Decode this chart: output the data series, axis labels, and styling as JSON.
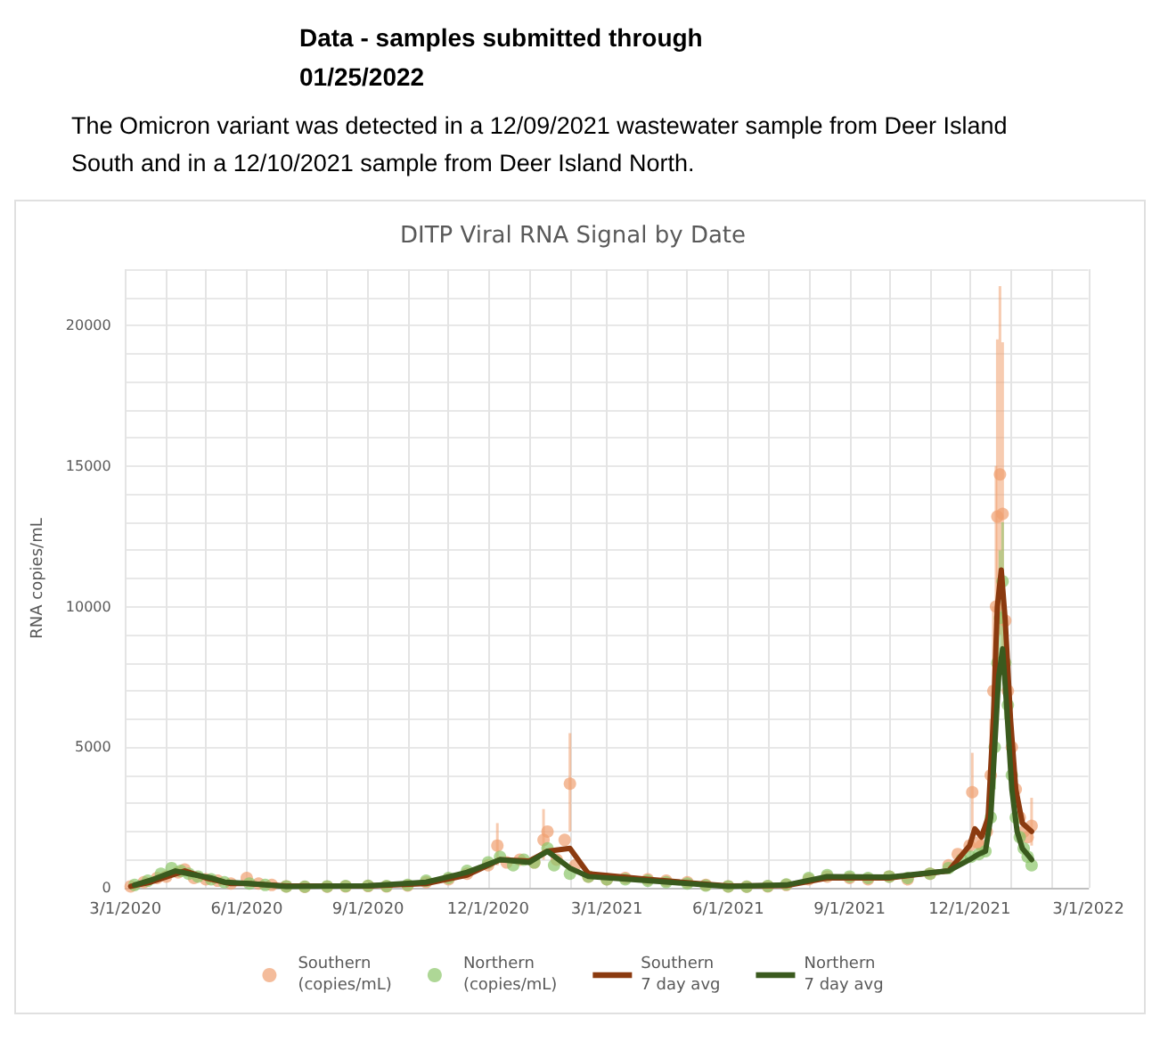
{
  "chart_data": {
    "type": "scatter",
    "title": "DITP Viral RNA Signal by Date",
    "ylabel": "RNA copies/mL",
    "annotations": [
      "Data - samples submitted through 01/25/2022",
      "The Omicron variant was detected in a 12/09/2021 wastewater sample from Deer Island South and in a 12/10/2021 sample from Deer Island North."
    ],
    "xlim": [
      "2020-03-01",
      "2022-03-01"
    ],
    "xticks": [
      {
        "value": "2020-03-01",
        "label": "3/1/2020"
      },
      {
        "value": "2020-04-01",
        "label": null
      },
      {
        "value": "2020-05-01",
        "label": null
      },
      {
        "value": "2020-06-01",
        "label": "6/1/2020"
      },
      {
        "value": "2020-07-01",
        "label": null
      },
      {
        "value": "2020-08-01",
        "label": null
      },
      {
        "value": "2020-09-01",
        "label": "9/1/2020"
      },
      {
        "value": "2020-10-01",
        "label": null
      },
      {
        "value": "2020-11-01",
        "label": null
      },
      {
        "value": "2020-12-01",
        "label": "12/1/2020"
      },
      {
        "value": "2021-01-01",
        "label": null
      },
      {
        "value": "2021-02-01",
        "label": null
      },
      {
        "value": "2021-03-01",
        "label": "3/1/2021"
      },
      {
        "value": "2021-04-01",
        "label": null
      },
      {
        "value": "2021-05-01",
        "label": null
      },
      {
        "value": "2021-06-01",
        "label": "6/1/2021"
      },
      {
        "value": "2021-07-01",
        "label": null
      },
      {
        "value": "2021-08-01",
        "label": null
      },
      {
        "value": "2021-09-01",
        "label": "9/1/2021"
      },
      {
        "value": "2021-10-01",
        "label": null
      },
      {
        "value": "2021-11-01",
        "label": null
      },
      {
        "value": "2021-12-01",
        "label": "12/1/2021"
      },
      {
        "value": "2022-01-01",
        "label": null
      },
      {
        "value": "2022-02-01",
        "label": null
      },
      {
        "value": "2022-03-01",
        "label": "3/1/2022"
      }
    ],
    "ylim": [
      0,
      22000
    ],
    "yticks": [
      0,
      {
        "value": 1000,
        "label": null
      },
      {
        "value": 2000,
        "label": null
      },
      {
        "value": 3000,
        "label": null
      },
      {
        "value": 4000,
        "label": null
      },
      5000,
      {
        "value": 6000,
        "label": null
      },
      {
        "value": 7000,
        "label": null
      },
      {
        "value": 8000,
        "label": null
      },
      {
        "value": 9000,
        "label": null
      },
      10000,
      {
        "value": 11000,
        "label": null
      },
      {
        "value": 12000,
        "label": null
      },
      {
        "value": 13000,
        "label": null
      },
      {
        "value": 14000,
        "label": null
      },
      15000,
      {
        "value": 16000,
        "label": null
      },
      {
        "value": 17000,
        "label": null
      },
      {
        "value": 18000,
        "label": null
      },
      {
        "value": 19000,
        "label": null
      },
      20000,
      {
        "value": 21000,
        "label": null
      },
      {
        "value": 22000,
        "label": null
      }
    ],
    "grid": true,
    "legend": "bottom",
    "marker": "circle",
    "series": [
      {
        "name": "Southern (copies/mL)",
        "color": "#f0a070",
        "x": [
          "2020-03-05",
          "2020-03-15",
          "2020-03-25",
          "2020-04-01",
          "2020-04-10",
          "2020-04-15",
          "2020-04-22",
          "2020-05-01",
          "2020-05-10",
          "2020-05-20",
          "2020-06-01",
          "2020-06-10",
          "2020-06-20",
          "2020-07-01",
          "2020-07-15",
          "2020-08-01",
          "2020-08-15",
          "2020-09-01",
          "2020-09-15",
          "2020-10-01",
          "2020-10-15",
          "2020-11-01",
          "2020-11-15",
          "2020-12-01",
          "2020-12-08",
          "2020-12-15",
          "2020-12-25",
          "2021-01-05",
          "2021-01-12",
          "2021-01-15",
          "2021-01-22",
          "2021-01-28",
          "2021-02-01",
          "2021-02-05",
          "2021-02-15",
          "2021-03-01",
          "2021-03-15",
          "2021-04-01",
          "2021-04-15",
          "2021-05-01",
          "2021-05-15",
          "2021-06-01",
          "2021-06-15",
          "2021-07-01",
          "2021-07-15",
          "2021-08-01",
          "2021-08-15",
          "2021-09-01",
          "2021-09-15",
          "2021-10-01",
          "2021-10-15",
          "2021-11-01",
          "2021-11-15",
          "2021-11-22",
          "2021-12-01",
          "2021-12-03",
          "2021-12-07",
          "2021-12-10",
          "2021-12-14",
          "2021-12-17",
          "2021-12-19",
          "2021-12-21",
          "2021-12-22",
          "2021-12-24",
          "2021-12-26",
          "2021-12-28",
          "2021-12-30",
          "2022-01-02",
          "2022-01-05",
          "2022-01-08",
          "2022-01-11",
          "2022-01-14",
          "2022-01-17"
        ],
        "values": [
          50,
          200,
          350,
          400,
          550,
          650,
          350,
          300,
          250,
          150,
          350,
          150,
          100,
          50,
          30,
          40,
          50,
          60,
          50,
          80,
          200,
          300,
          500,
          800,
          1500,
          900,
          1000,
          900,
          1700,
          2000,
          1000,
          1700,
          3700,
          800,
          400,
          300,
          350,
          300,
          250,
          200,
          100,
          50,
          40,
          50,
          100,
          300,
          400,
          350,
          300,
          400,
          300,
          500,
          800,
          1200,
          1500,
          3400,
          1600,
          1500,
          2000,
          4000,
          7000,
          10000,
          13200,
          14700,
          13300,
          9500,
          7000,
          5000,
          3500,
          2500,
          2000,
          1800,
          2200
        ],
        "errors": [
          null,
          null,
          null,
          null,
          null,
          null,
          null,
          null,
          null,
          null,
          null,
          null,
          null,
          null,
          null,
          null,
          null,
          null,
          null,
          null,
          null,
          null,
          null,
          null,
          [
            800,
            2300
          ],
          null,
          null,
          null,
          [
            1000,
            2800
          ],
          null,
          null,
          null,
          [
            2000,
            5500
          ],
          null,
          null,
          null,
          null,
          null,
          null,
          null,
          null,
          null,
          null,
          null,
          null,
          null,
          null,
          null,
          null,
          null,
          null,
          null,
          null,
          null,
          null,
          [
            2000,
            4800
          ],
          null,
          null,
          null,
          [
            2500,
            6000
          ],
          [
            4500,
            10000
          ],
          [
            6000,
            15000
          ],
          [
            8000,
            19500
          ],
          [
            9000,
            21400
          ],
          [
            8500,
            19400
          ],
          null,
          null,
          null,
          null,
          null,
          null,
          null,
          [
            1500,
            3200
          ]
        ]
      },
      {
        "name": "Northern (copies/mL)",
        "color": "#8cc66a",
        "x": [
          "2020-03-08",
          "2020-03-18",
          "2020-03-28",
          "2020-04-05",
          "2020-04-12",
          "2020-04-18",
          "2020-04-25",
          "2020-05-05",
          "2020-05-15",
          "2020-06-03",
          "2020-06-15",
          "2020-07-01",
          "2020-07-15",
          "2020-08-01",
          "2020-08-15",
          "2020-09-01",
          "2020-09-15",
          "2020-10-01",
          "2020-10-15",
          "2020-11-01",
          "2020-11-15",
          "2020-12-01",
          "2020-12-10",
          "2020-12-20",
          "2020-12-28",
          "2021-01-05",
          "2021-01-15",
          "2021-01-20",
          "2021-02-01",
          "2021-02-15",
          "2021-03-01",
          "2021-03-15",
          "2021-04-01",
          "2021-04-15",
          "2021-05-01",
          "2021-05-15",
          "2021-06-01",
          "2021-06-15",
          "2021-07-01",
          "2021-07-15",
          "2021-08-01",
          "2021-08-15",
          "2021-09-01",
          "2021-09-15",
          "2021-10-01",
          "2021-10-15",
          "2021-11-01",
          "2021-11-15",
          "2021-11-25",
          "2021-12-02",
          "2021-12-08",
          "2021-12-13",
          "2021-12-17",
          "2021-12-20",
          "2021-12-22",
          "2021-12-24",
          "2021-12-26",
          "2021-12-28",
          "2021-12-30",
          "2022-01-02",
          "2022-01-05",
          "2022-01-08",
          "2022-01-11",
          "2022-01-14",
          "2022-01-17"
        ],
        "values": [
          100,
          250,
          500,
          700,
          600,
          500,
          400,
          300,
          200,
          150,
          100,
          50,
          40,
          50,
          60,
          70,
          60,
          100,
          250,
          350,
          600,
          900,
          1100,
          800,
          1000,
          900,
          1400,
          800,
          500,
          400,
          300,
          300,
          250,
          200,
          150,
          80,
          50,
          40,
          60,
          120,
          350,
          450,
          400,
          350,
          400,
          350,
          500,
          700,
          1000,
          1100,
          1200,
          1300,
          2500,
          5000,
          8000,
          9600,
          10900,
          8000,
          6500,
          4000,
          2500,
          1800,
          1400,
          1100,
          800
        ],
        "errors": [
          null,
          null,
          null,
          null,
          null,
          null,
          null,
          null,
          null,
          null,
          null,
          null,
          null,
          null,
          null,
          null,
          null,
          null,
          null,
          null,
          null,
          null,
          null,
          null,
          null,
          null,
          null,
          null,
          null,
          null,
          null,
          null,
          null,
          null,
          null,
          null,
          null,
          null,
          null,
          null,
          null,
          null,
          null,
          null,
          null,
          null,
          null,
          null,
          null,
          null,
          null,
          null,
          null,
          [
            3500,
            7000
          ],
          [
            6000,
            10500
          ],
          [
            7000,
            12000
          ],
          [
            8000,
            13000
          ],
          [
            6000,
            10000
          ],
          null,
          null,
          null,
          null,
          null,
          null,
          null
        ]
      },
      {
        "name": "Southern 7 day avg",
        "type": "line",
        "color": "#8b3a0f",
        "marker": "none",
        "x": [
          "2020-03-05",
          "2020-03-20",
          "2020-04-05",
          "2020-04-15",
          "2020-05-01",
          "2020-05-20",
          "2020-06-01",
          "2020-07-01",
          "2020-09-01",
          "2020-10-15",
          "2020-11-15",
          "2020-12-10",
          "2021-01-01",
          "2021-01-15",
          "2021-02-01",
          "2021-02-15",
          "2021-04-01",
          "2021-06-01",
          "2021-07-15",
          "2021-08-15",
          "2021-10-01",
          "2021-11-15",
          "2021-12-01",
          "2021-12-05",
          "2021-12-10",
          "2021-12-15",
          "2021-12-19",
          "2021-12-22",
          "2021-12-25",
          "2021-12-28",
          "2022-01-01",
          "2022-01-05",
          "2022-01-10",
          "2022-01-17"
        ],
        "values": [
          50,
          200,
          450,
          600,
          350,
          150,
          150,
          60,
          60,
          150,
          450,
          1000,
          950,
          1300,
          1400,
          500,
          300,
          60,
          80,
          350,
          350,
          600,
          1500,
          2100,
          1800,
          2500,
          6000,
          10000,
          11300,
          9500,
          6000,
          3500,
          2300,
          2000
        ]
      },
      {
        "name": "Northern 7 day avg",
        "type": "line",
        "color": "#3a5a1e",
        "marker": "none",
        "x": [
          "2020-03-08",
          "2020-03-22",
          "2020-04-08",
          "2020-04-18",
          "2020-05-05",
          "2020-05-15",
          "2020-06-03",
          "2020-07-01",
          "2020-09-01",
          "2020-10-15",
          "2020-11-15",
          "2020-12-10",
          "2021-01-01",
          "2021-01-15",
          "2021-02-01",
          "2021-02-15",
          "2021-04-01",
          "2021-06-01",
          "2021-07-15",
          "2021-08-15",
          "2021-10-01",
          "2021-11-15",
          "2021-12-01",
          "2021-12-08",
          "2021-12-13",
          "2021-12-17",
          "2021-12-20",
          "2021-12-23",
          "2021-12-26",
          "2021-12-29",
          "2022-01-02",
          "2022-01-06",
          "2022-01-10",
          "2022-01-17"
        ],
        "values": [
          100,
          300,
          600,
          500,
          350,
          200,
          150,
          50,
          70,
          200,
          550,
          1000,
          900,
          1300,
          700,
          400,
          250,
          50,
          100,
          400,
          380,
          600,
          1000,
          1200,
          1300,
          2500,
          5000,
          7500,
          8500,
          6500,
          3500,
          2000,
          1400,
          1000
        ]
      }
    ]
  }
}
